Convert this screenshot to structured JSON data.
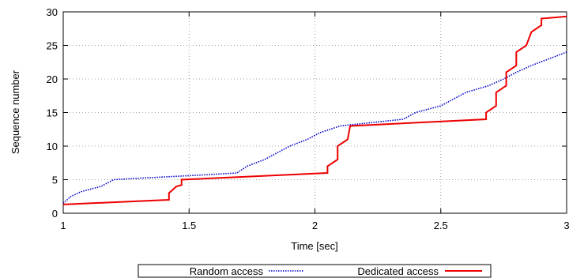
{
  "chart_data": {
    "type": "line",
    "title": "",
    "xlabel": "Time [sec]",
    "ylabel": "Sequence number",
    "xlim": [
      1,
      3
    ],
    "ylim": [
      0,
      30
    ],
    "xticks": [
      {
        "value": 1,
        "label": "1"
      },
      {
        "value": 1.5,
        "label": "1.5"
      },
      {
        "value": 2,
        "label": "2"
      },
      {
        "value": 2.5,
        "label": "2.5"
      },
      {
        "value": 3,
        "label": "3"
      }
    ],
    "yticks": [
      {
        "value": 0,
        "label": "0"
      },
      {
        "value": 5,
        "label": "5"
      },
      {
        "value": 10,
        "label": "10"
      },
      {
        "value": 15,
        "label": "15"
      },
      {
        "value": 20,
        "label": "20"
      },
      {
        "value": 25,
        "label": "25"
      },
      {
        "value": 30,
        "label": "30"
      }
    ],
    "grid": true,
    "legend_position": "bottom",
    "series": [
      {
        "name": "Random access",
        "color": "#0000cc",
        "style": "dotted",
        "points": [
          [
            1.0,
            1.5
          ],
          [
            1.03,
            2.5
          ],
          [
            1.07,
            3.2
          ],
          [
            1.15,
            4.0
          ],
          [
            1.2,
            5.0
          ],
          [
            1.35,
            5.3
          ],
          [
            1.55,
            5.7
          ],
          [
            1.69,
            6.0
          ],
          [
            1.73,
            7.0
          ],
          [
            1.8,
            8.0
          ],
          [
            1.85,
            9.0
          ],
          [
            1.9,
            10.0
          ],
          [
            1.97,
            11.0
          ],
          [
            2.02,
            12.0
          ],
          [
            2.1,
            13.0
          ],
          [
            2.35,
            14.0
          ],
          [
            2.4,
            15.0
          ],
          [
            2.5,
            16.0
          ],
          [
            2.55,
            17.0
          ],
          [
            2.6,
            18.0
          ],
          [
            2.69,
            19.0
          ],
          [
            2.75,
            20.0
          ],
          [
            2.8,
            21.0
          ],
          [
            2.86,
            22.0
          ],
          [
            2.93,
            23.0
          ],
          [
            3.0,
            24.0
          ]
        ]
      },
      {
        "name": "Dedicated access",
        "color": "#ee0000",
        "style": "solid",
        "points": [
          [
            1.0,
            1.3
          ],
          [
            1.42,
            2.0
          ],
          [
            1.42,
            3.0
          ],
          [
            1.45,
            4.0
          ],
          [
            1.47,
            4.2
          ],
          [
            1.47,
            5.0
          ],
          [
            2.05,
            6.0
          ],
          [
            2.05,
            7.0
          ],
          [
            2.09,
            8.0
          ],
          [
            2.09,
            10.0
          ],
          [
            2.13,
            11.0
          ],
          [
            2.14,
            13.0
          ],
          [
            2.68,
            14.0
          ],
          [
            2.68,
            15.0
          ],
          [
            2.72,
            16.0
          ],
          [
            2.72,
            18.0
          ],
          [
            2.76,
            19.0
          ],
          [
            2.76,
            21.0
          ],
          [
            2.8,
            22.0
          ],
          [
            2.8,
            24.0
          ],
          [
            2.84,
            25.0
          ],
          [
            2.86,
            27.0
          ],
          [
            2.9,
            28.0
          ],
          [
            2.9,
            29.0
          ],
          [
            3.0,
            29.3
          ]
        ]
      }
    ]
  }
}
